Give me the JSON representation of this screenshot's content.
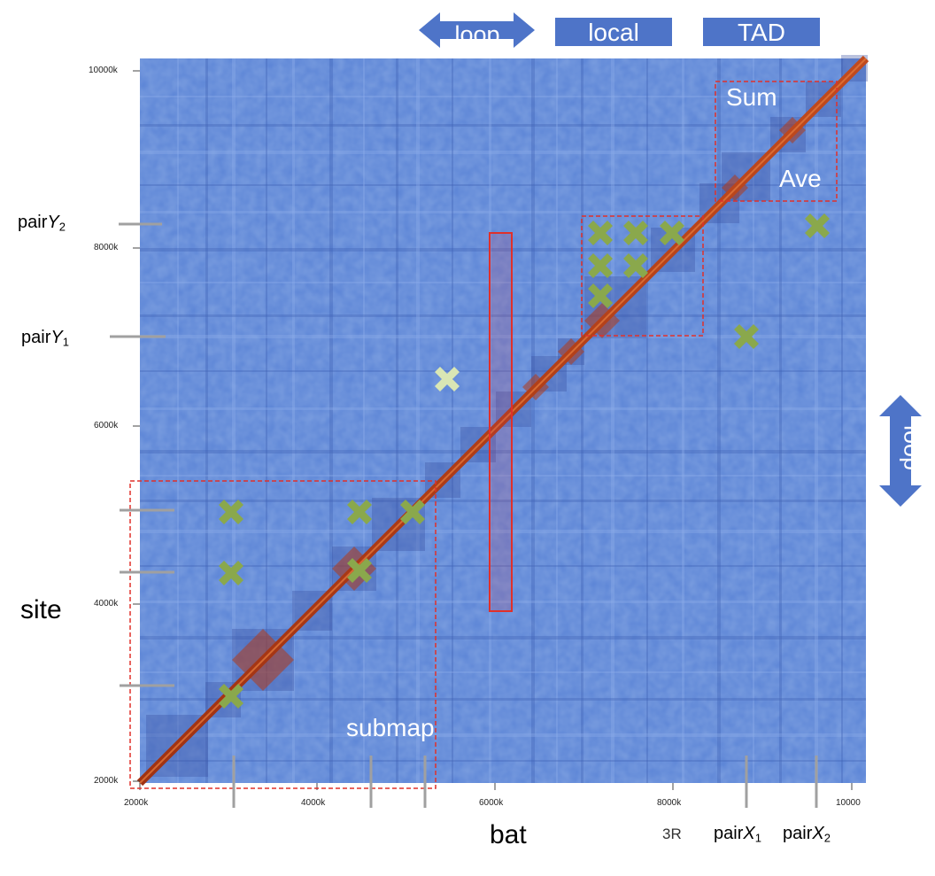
{
  "header": {
    "loop_label": "loop",
    "local_label": "local",
    "tad_label": "TAD",
    "side_loop_label": "loop"
  },
  "map": {
    "x_ticks": [
      "2000k",
      "4000k",
      "6000k",
      "8000k",
      "10000"
    ],
    "y_ticks": [
      "10000k",
      "8000k",
      "6000k",
      "4000k",
      "2000k"
    ],
    "chromosome": "3R"
  },
  "annotations": {
    "sum": "Sum",
    "ave": "Ave",
    "submap": "submap",
    "site": "site",
    "bat": "bat",
    "pairY2_base": "pair",
    "pairY2_var": "Y",
    "pairY2_sub": "2",
    "pairY1_base": "pair",
    "pairY1_var": "Y",
    "pairY1_sub": "1",
    "pairX1_base": "pair",
    "pairX1_var": "X",
    "pairX1_sub": "1",
    "pairX2_base": "pair",
    "pairX2_var": "X",
    "pairX2_sub": "2"
  },
  "colors": {
    "map_blue": "#5b84d6",
    "diagonal_red": "#b8401c",
    "marker_green": "#8aa84c",
    "box_red": "#e0302a",
    "banner_blue": "#4e74c8"
  },
  "icons": [
    "cross-marker-icon",
    "double-arrow-icon"
  ]
}
